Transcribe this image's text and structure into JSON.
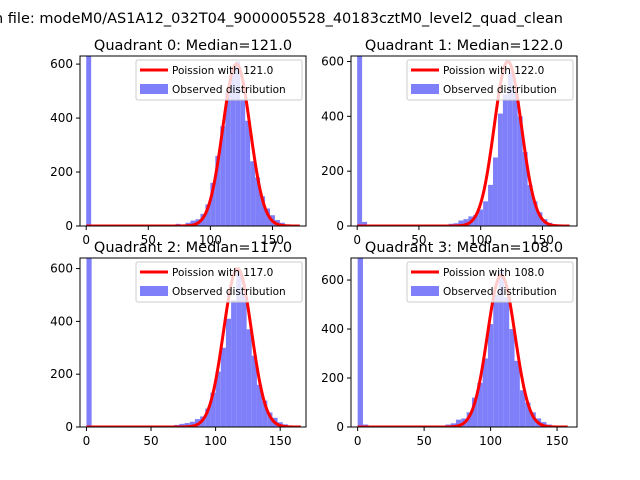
{
  "figure": {
    "suptitle": "n file: modeM0/AS1A12_032T04_9000005528_40183cztM0_level2_quad_clean"
  },
  "colors": {
    "poisson_line": "#ff0000",
    "histogram": "#7f7ffa",
    "axes": "#000000",
    "background": "#ffffff"
  },
  "chart_data": [
    {
      "type": "bar",
      "title": "Quadrant 0: Median=121.0",
      "xlim": [
        -5,
        177
      ],
      "ylim": [
        0,
        630
      ],
      "xticks": [
        0,
        50,
        100,
        150
      ],
      "yticks": [
        0,
        200,
        400,
        600
      ],
      "legend_position": "top-right",
      "series": [
        {
          "name": "Poission with 121.0",
          "kind": "line",
          "mean": 121.0,
          "x_range": [
            0,
            172
          ],
          "peak": 600
        },
        {
          "name": "Observed distribution",
          "kind": "histogram",
          "bins": [
            {
              "x0": 0,
              "x1": 4,
              "count": 630
            },
            {
              "x0": 4,
              "x1": 8,
              "count": 3
            },
            {
              "x0": 8,
              "x1": 12,
              "count": 2
            },
            {
              "x0": 68,
              "x1": 72,
              "count": 3
            },
            {
              "x0": 72,
              "x1": 76,
              "count": 8
            },
            {
              "x0": 76,
              "x1": 80,
              "count": 5
            },
            {
              "x0": 80,
              "x1": 84,
              "count": 12
            },
            {
              "x0": 84,
              "x1": 88,
              "count": 20
            },
            {
              "x0": 88,
              "x1": 92,
              "count": 25
            },
            {
              "x0": 92,
              "x1": 96,
              "count": 45
            },
            {
              "x0": 96,
              "x1": 100,
              "count": 80
            },
            {
              "x0": 100,
              "x1": 104,
              "count": 160
            },
            {
              "x0": 104,
              "x1": 108,
              "count": 260
            },
            {
              "x0": 108,
              "x1": 112,
              "count": 370
            },
            {
              "x0": 112,
              "x1": 116,
              "count": 500
            },
            {
              "x0": 116,
              "x1": 120,
              "count": 590
            },
            {
              "x0": 120,
              "x1": 124,
              "count": 610
            },
            {
              "x0": 124,
              "x1": 128,
              "count": 470
            },
            {
              "x0": 128,
              "x1": 132,
              "count": 390
            },
            {
              "x0": 132,
              "x1": 136,
              "count": 240
            },
            {
              "x0": 136,
              "x1": 140,
              "count": 180
            },
            {
              "x0": 140,
              "x1": 144,
              "count": 110
            },
            {
              "x0": 144,
              "x1": 148,
              "count": 65
            },
            {
              "x0": 148,
              "x1": 152,
              "count": 40
            },
            {
              "x0": 152,
              "x1": 156,
              "count": 22
            },
            {
              "x0": 156,
              "x1": 160,
              "count": 12
            },
            {
              "x0": 160,
              "x1": 164,
              "count": 6
            },
            {
              "x0": 164,
              "x1": 168,
              "count": 3
            }
          ]
        }
      ]
    },
    {
      "type": "bar",
      "title": "Quadrant 1: Median=122.0",
      "xlim": [
        -5,
        178
      ],
      "ylim": [
        0,
        620
      ],
      "xticks": [
        0,
        50,
        100,
        150
      ],
      "yticks": [
        0,
        200,
        400,
        600
      ],
      "legend_position": "top-right",
      "series": [
        {
          "name": "Poission with 122.0",
          "kind": "line",
          "mean": 122.0,
          "x_range": [
            0,
            172
          ],
          "peak": 600
        },
        {
          "name": "Observed distribution",
          "kind": "histogram",
          "bins": [
            {
              "x0": 0,
              "x1": 4,
              "count": 620
            },
            {
              "x0": 4,
              "x1": 8,
              "count": 15
            },
            {
              "x0": 8,
              "x1": 12,
              "count": 5
            },
            {
              "x0": 12,
              "x1": 16,
              "count": 3
            },
            {
              "x0": 70,
              "x1": 74,
              "count": 5
            },
            {
              "x0": 74,
              "x1": 78,
              "count": 8
            },
            {
              "x0": 78,
              "x1": 82,
              "count": 10
            },
            {
              "x0": 82,
              "x1": 86,
              "count": 20
            },
            {
              "x0": 86,
              "x1": 90,
              "count": 25
            },
            {
              "x0": 90,
              "x1": 94,
              "count": 35
            },
            {
              "x0": 94,
              "x1": 98,
              "count": 40
            },
            {
              "x0": 98,
              "x1": 102,
              "count": 60
            },
            {
              "x0": 102,
              "x1": 106,
              "count": 90
            },
            {
              "x0": 106,
              "x1": 110,
              "count": 150
            },
            {
              "x0": 110,
              "x1": 114,
              "count": 250
            },
            {
              "x0": 114,
              "x1": 118,
              "count": 410
            },
            {
              "x0": 118,
              "x1": 122,
              "count": 480
            },
            {
              "x0": 122,
              "x1": 126,
              "count": 560
            },
            {
              "x0": 126,
              "x1": 130,
              "count": 490
            },
            {
              "x0": 130,
              "x1": 134,
              "count": 400
            },
            {
              "x0": 134,
              "x1": 138,
              "count": 270
            },
            {
              "x0": 138,
              "x1": 142,
              "count": 150
            },
            {
              "x0": 142,
              "x1": 146,
              "count": 90
            },
            {
              "x0": 146,
              "x1": 150,
              "count": 50
            },
            {
              "x0": 150,
              "x1": 154,
              "count": 25
            },
            {
              "x0": 154,
              "x1": 158,
              "count": 12
            },
            {
              "x0": 158,
              "x1": 162,
              "count": 5
            }
          ]
        }
      ]
    },
    {
      "type": "bar",
      "title": "Quadrant 2: Median=117.0",
      "xlim": [
        -5,
        170
      ],
      "ylim": [
        0,
        640
      ],
      "xticks": [
        0,
        50,
        100,
        150
      ],
      "yticks": [
        0,
        200,
        400,
        600
      ],
      "legend_position": "top-right",
      "series": [
        {
          "name": "Poission with 117.0",
          "kind": "line",
          "mean": 117.0,
          "x_range": [
            0,
            166
          ],
          "peak": 600
        },
        {
          "name": "Observed distribution",
          "kind": "histogram",
          "bins": [
            {
              "x0": 0,
              "x1": 4,
              "count": 640
            },
            {
              "x0": 4,
              "x1": 8,
              "count": 3
            },
            {
              "x0": 64,
              "x1": 68,
              "count": 3
            },
            {
              "x0": 68,
              "x1": 72,
              "count": 8
            },
            {
              "x0": 72,
              "x1": 76,
              "count": 12
            },
            {
              "x0": 76,
              "x1": 80,
              "count": 15
            },
            {
              "x0": 80,
              "x1": 84,
              "count": 20
            },
            {
              "x0": 84,
              "x1": 88,
              "count": 30
            },
            {
              "x0": 88,
              "x1": 92,
              "count": 40
            },
            {
              "x0": 92,
              "x1": 96,
              "count": 70
            },
            {
              "x0": 96,
              "x1": 100,
              "count": 130
            },
            {
              "x0": 100,
              "x1": 104,
              "count": 210
            },
            {
              "x0": 104,
              "x1": 108,
              "count": 300
            },
            {
              "x0": 108,
              "x1": 112,
              "count": 410
            },
            {
              "x0": 112,
              "x1": 116,
              "count": 480
            },
            {
              "x0": 116,
              "x1": 120,
              "count": 590
            },
            {
              "x0": 120,
              "x1": 124,
              "count": 500
            },
            {
              "x0": 124,
              "x1": 128,
              "count": 370
            },
            {
              "x0": 128,
              "x1": 132,
              "count": 270
            },
            {
              "x0": 132,
              "x1": 136,
              "count": 160
            },
            {
              "x0": 136,
              "x1": 140,
              "count": 100
            },
            {
              "x0": 140,
              "x1": 144,
              "count": 55
            },
            {
              "x0": 144,
              "x1": 148,
              "count": 35
            },
            {
              "x0": 148,
              "x1": 152,
              "count": 18
            },
            {
              "x0": 152,
              "x1": 156,
              "count": 10
            },
            {
              "x0": 156,
              "x1": 160,
              "count": 5
            },
            {
              "x0": 160,
              "x1": 164,
              "count": 3
            }
          ]
        }
      ]
    },
    {
      "type": "bar",
      "title": "Quadrant 3: Median=108.0",
      "xlim": [
        -5,
        165
      ],
      "ylim": [
        0,
        690
      ],
      "xticks": [
        0,
        50,
        100,
        150
      ],
      "yticks": [
        0,
        200,
        400,
        600
      ],
      "legend_position": "top-right",
      "series": [
        {
          "name": "Poission with 108.0",
          "kind": "line",
          "mean": 108.0,
          "x_range": [
            0,
            158
          ],
          "peak": 620
        },
        {
          "name": "Observed distribution",
          "kind": "histogram",
          "bins": [
            {
              "x0": 0,
              "x1": 4,
              "count": 690
            },
            {
              "x0": 4,
              "x1": 8,
              "count": 10
            },
            {
              "x0": 8,
              "x1": 12,
              "count": 3
            },
            {
              "x0": 62,
              "x1": 66,
              "count": 5
            },
            {
              "x0": 66,
              "x1": 70,
              "count": 10
            },
            {
              "x0": 70,
              "x1": 74,
              "count": 15
            },
            {
              "x0": 74,
              "x1": 78,
              "count": 30
            },
            {
              "x0": 78,
              "x1": 82,
              "count": 35
            },
            {
              "x0": 82,
              "x1": 86,
              "count": 60
            },
            {
              "x0": 86,
              "x1": 90,
              "count": 120
            },
            {
              "x0": 90,
              "x1": 94,
              "count": 180
            },
            {
              "x0": 94,
              "x1": 98,
              "count": 280
            },
            {
              "x0": 98,
              "x1": 102,
              "count": 420
            },
            {
              "x0": 102,
              "x1": 106,
              "count": 540
            },
            {
              "x0": 106,
              "x1": 110,
              "count": 640
            },
            {
              "x0": 110,
              "x1": 114,
              "count": 530
            },
            {
              "x0": 114,
              "x1": 118,
              "count": 400
            },
            {
              "x0": 118,
              "x1": 122,
              "count": 270
            },
            {
              "x0": 122,
              "x1": 126,
              "count": 150
            },
            {
              "x0": 126,
              "x1": 130,
              "count": 100
            },
            {
              "x0": 130,
              "x1": 134,
              "count": 60
            },
            {
              "x0": 134,
              "x1": 138,
              "count": 35
            },
            {
              "x0": 138,
              "x1": 142,
              "count": 20
            },
            {
              "x0": 142,
              "x1": 146,
              "count": 10
            },
            {
              "x0": 146,
              "x1": 150,
              "count": 5
            }
          ]
        }
      ]
    }
  ]
}
